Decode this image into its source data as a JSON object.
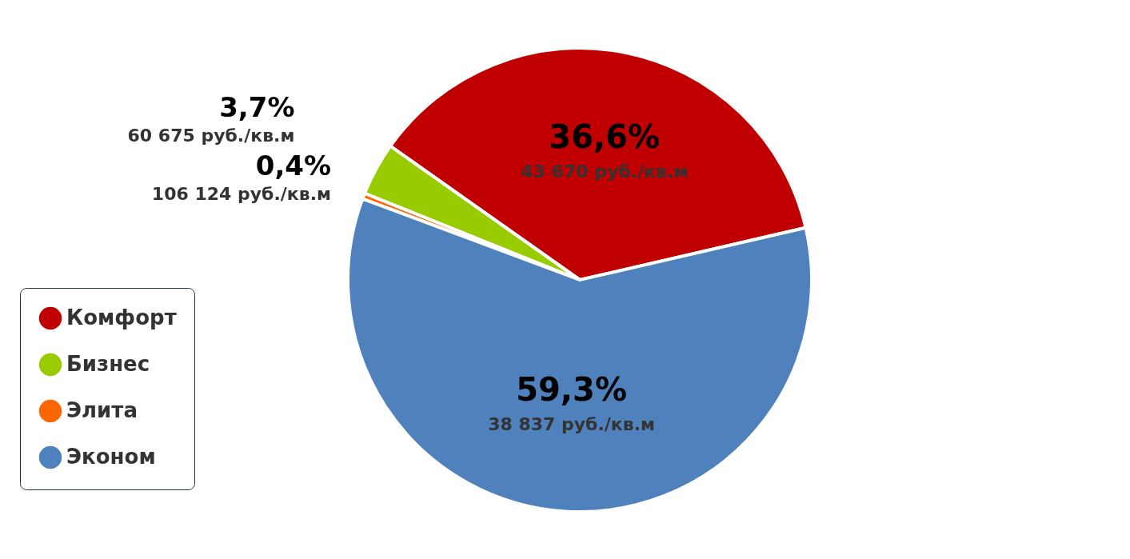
{
  "chart_data": {
    "type": "pie",
    "categories": [
      "Комфорт",
      "Бизнес",
      "Элита",
      "Эконом"
    ],
    "values": [
      36.6,
      3.7,
      0.4,
      59.3
    ],
    "colors": [
      "#c00000",
      "#99cc00",
      "#ff6600",
      "#4f81bd"
    ],
    "value_labels": [
      "36,6%",
      "3,7%",
      "0,4%",
      "59,3%"
    ],
    "annotations": [
      "43 670 руб./кв.м",
      "60 675 руб./кв.м",
      "106 124 руб./кв.м",
      "38 837 руб./кв.м"
    ],
    "legend": "bottom left"
  }
}
